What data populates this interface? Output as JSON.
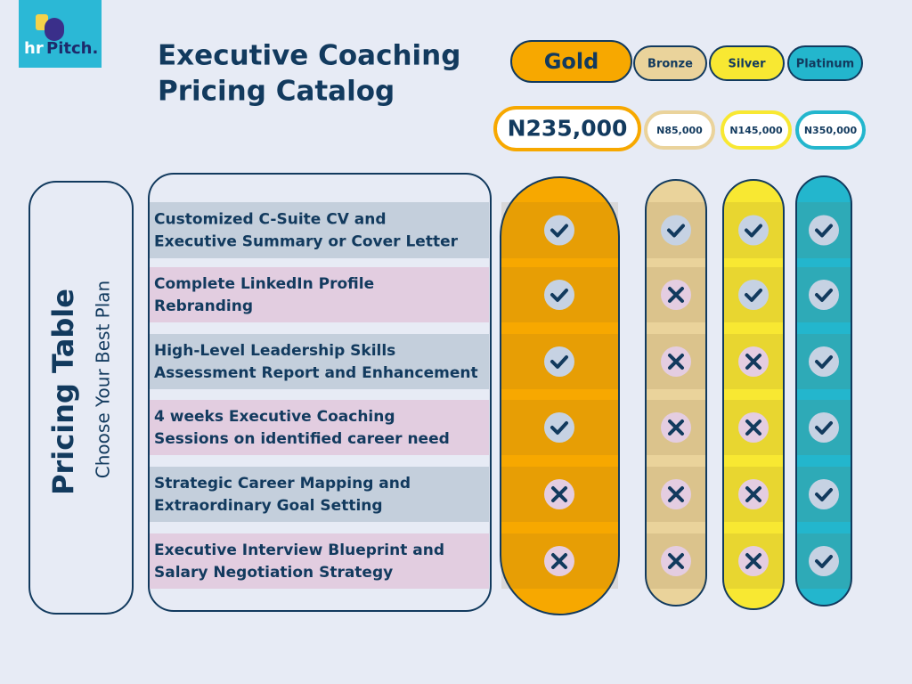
{
  "logo": {
    "prefix": "hr",
    "name": "Pitch."
  },
  "title": [
    "Executive Coaching",
    "Pricing Catalog"
  ],
  "side": {
    "title": "Pricing Table",
    "subtitle": "Choose Your Best Plan"
  },
  "plans": [
    {
      "name": "Gold",
      "price": "N235,000",
      "color": "#f7a800"
    },
    {
      "name": "Bronze",
      "price": "N85,000",
      "color": "#ead39b"
    },
    {
      "name": "Silver",
      "price": "N145,000",
      "color": "#f8e832"
    },
    {
      "name": "Platinum",
      "price": "N350,000",
      "color": "#23b6cd"
    }
  ],
  "features": [
    {
      "lines": [
        "Customized C-Suite CV and",
        "Executive Summary or Cover Letter"
      ],
      "included": [
        true,
        true,
        true,
        true
      ]
    },
    {
      "lines": [
        "Complete LinkedIn Profile",
        "Rebranding"
      ],
      "included": [
        true,
        false,
        true,
        true
      ]
    },
    {
      "lines": [
        "High-Level Leadership Skills",
        "Assessment Report and Enhancement"
      ],
      "included": [
        true,
        false,
        false,
        true
      ]
    },
    {
      "lines": [
        "4 weeks Executive Coaching",
        "Sessions on identified career need"
      ],
      "included": [
        true,
        false,
        false,
        true
      ]
    },
    {
      "lines": [
        "Strategic Career Mapping and",
        "Extraordinary Goal Setting"
      ],
      "included": [
        false,
        false,
        false,
        true
      ]
    },
    {
      "lines": [
        "Executive Interview Blueprint and",
        "Salary Negotiation Strategy"
      ],
      "included": [
        false,
        false,
        false,
        true
      ]
    }
  ]
}
